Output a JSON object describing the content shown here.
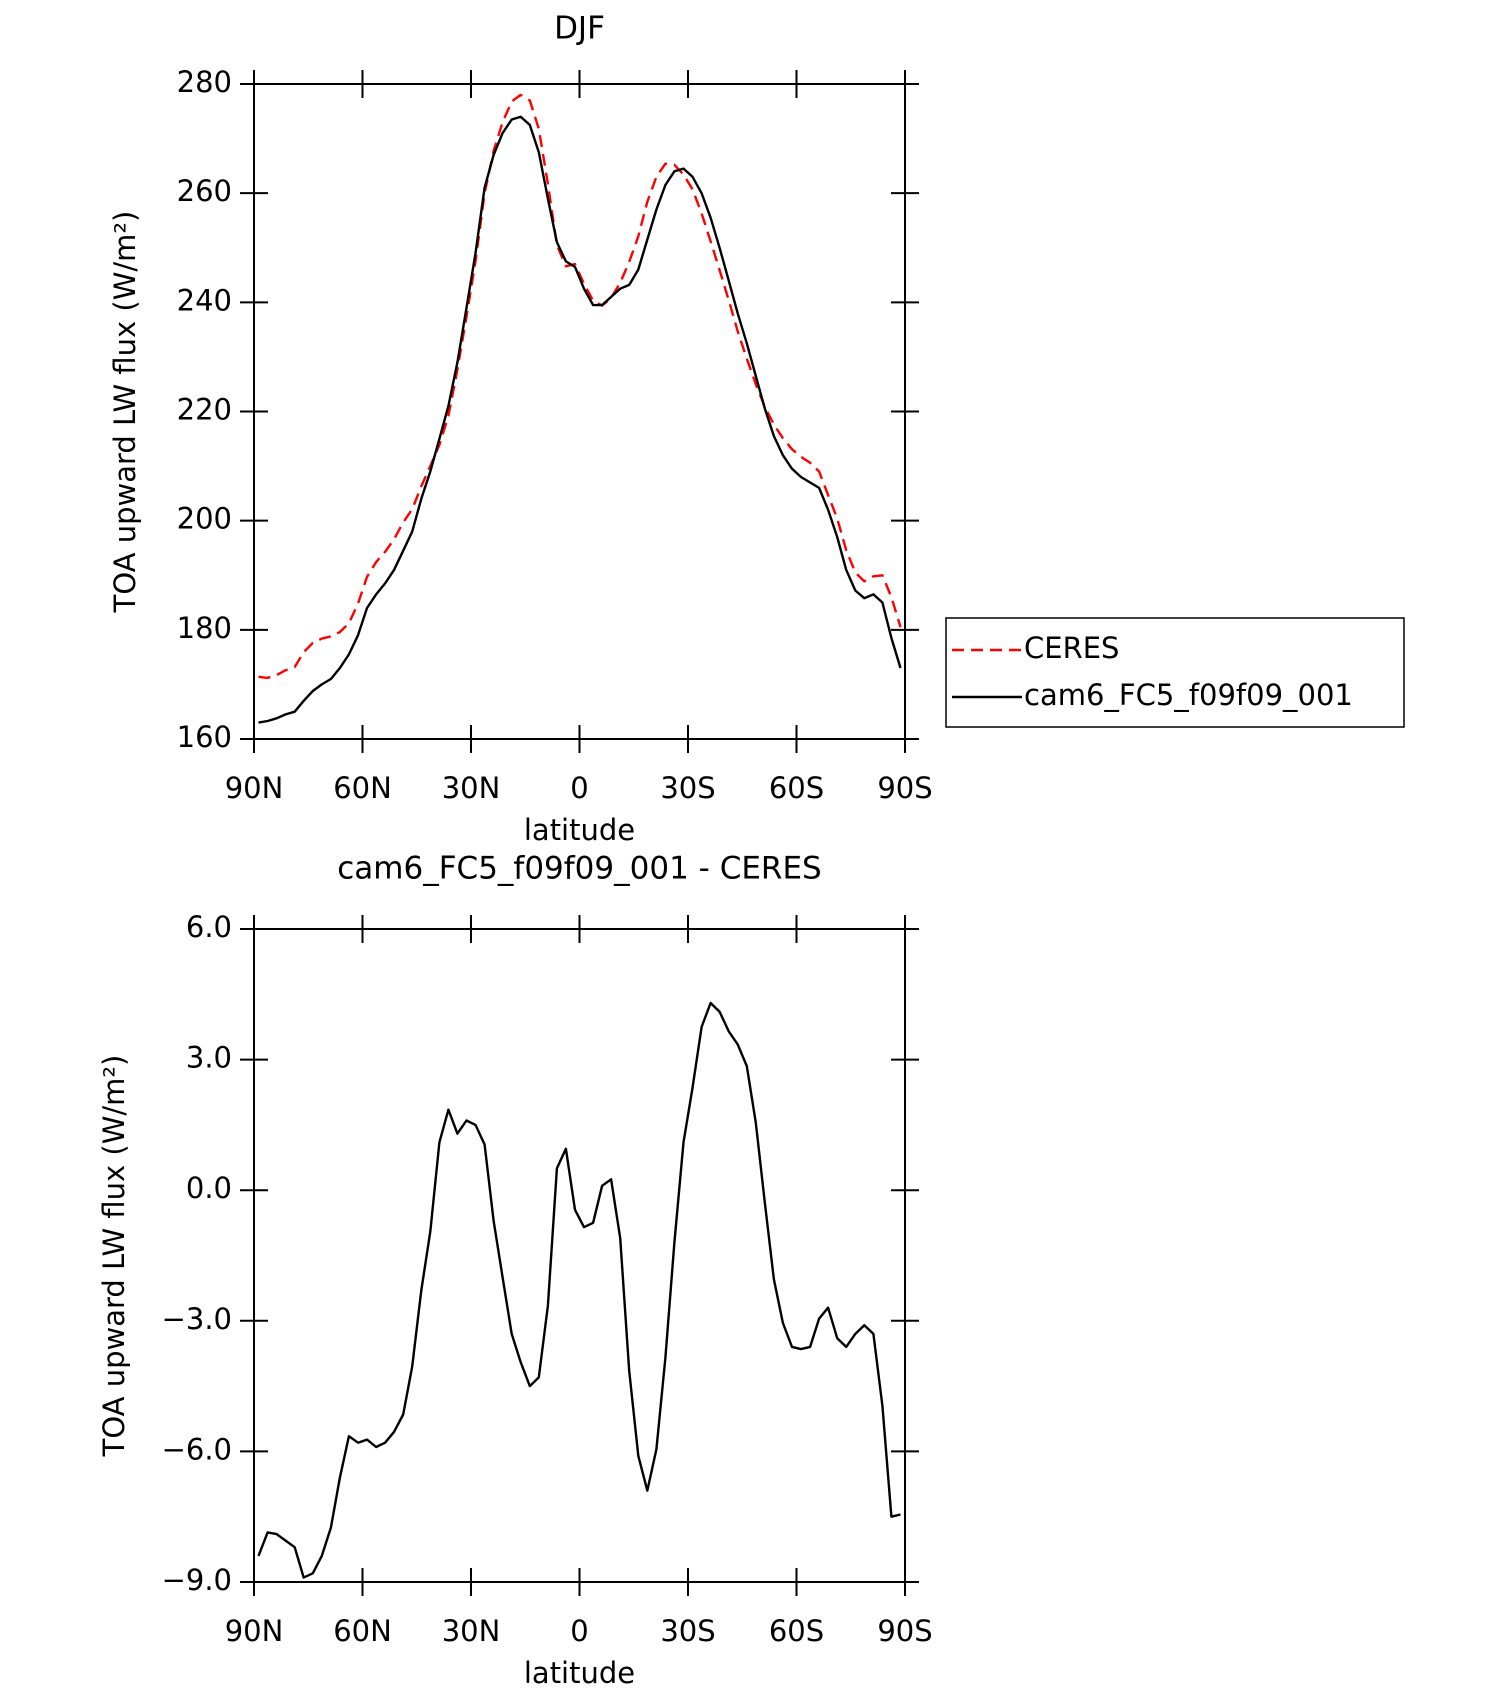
{
  "chart_data": [
    {
      "type": "line",
      "title": "DJF",
      "xlabel": "latitude",
      "ylabel": "TOA upward LW flux (W/m²)",
      "x": [
        88.75,
        86.25,
        83.75,
        81.25,
        78.75,
        76.25,
        73.75,
        71.25,
        68.75,
        66.25,
        63.75,
        61.25,
        58.75,
        56.25,
        53.75,
        51.25,
        48.75,
        46.25,
        43.75,
        41.25,
        38.75,
        36.25,
        33.75,
        31.25,
        28.75,
        26.25,
        23.75,
        21.25,
        18.75,
        16.25,
        13.75,
        11.25,
        8.75,
        6.25,
        3.75,
        1.25,
        -1.25,
        -3.75,
        -6.25,
        -8.75,
        -11.25,
        -13.75,
        -16.25,
        -18.75,
        -21.25,
        -23.75,
        -26.25,
        -28.75,
        -31.25,
        -33.75,
        -36.25,
        -38.75,
        -41.25,
        -43.75,
        -46.25,
        -48.75,
        -51.25,
        -53.75,
        -56.25,
        -58.75,
        -61.25,
        -63.75,
        -66.25,
        -68.75,
        -71.25,
        -73.75,
        -76.25,
        -78.75,
        -81.25,
        -83.75,
        -86.25,
        -88.75
      ],
      "xlim": [
        90,
        -90
      ],
      "xticks": [
        {
          "value": 90,
          "label": "90N"
        },
        {
          "value": 60,
          "label": "60N"
        },
        {
          "value": 30,
          "label": "30N"
        },
        0,
        {
          "value": -30,
          "label": "30S"
        },
        {
          "value": -60,
          "label": "60S"
        },
        {
          "value": -90,
          "label": "90S"
        }
      ],
      "ylim": [
        160,
        280
      ],
      "yticks": [
        160,
        180,
        200,
        220,
        240,
        260,
        280
      ],
      "legend": "right",
      "series": [
        {
          "name": "CERES",
          "color": "#ff0000",
          "dashed": true,
          "values": [
            171.4,
            171.2,
            171.7,
            172.6,
            173.2,
            175.9,
            177.6,
            178.4,
            178.8,
            179.6,
            181.2,
            184.8,
            189.7,
            192.4,
            194.3,
            196.6,
            199.7,
            202.1,
            206.3,
            210,
            213.9,
            219.2,
            227.7,
            237.4,
            247.5,
            260,
            267.7,
            273,
            276.8,
            278,
            277,
            271.8,
            261.7,
            250.5,
            246.6,
            247,
            243.4,
            240.3,
            239.4,
            240.8,
            243.6,
            247.4,
            252.1,
            258.4,
            263,
            265.4,
            265.2,
            263.4,
            260.7,
            256.3,
            251.2,
            245.9,
            240.4,
            234.7,
            229.7,
            225,
            220.8,
            217.6,
            215.1,
            213.1,
            211.7,
            210.6,
            209,
            204.7,
            200.4,
            194.6,
            190.5,
            188.9,
            189.8,
            190,
            186,
            180.5
          ]
        },
        {
          "name": "cam6_FC5_f09f09_001",
          "color": "#000000",
          "dashed": false,
          "values": [
            163,
            163.3,
            163.8,
            164.5,
            165,
            167,
            168.8,
            170,
            171,
            173,
            175.5,
            179,
            184,
            186.5,
            188.5,
            191,
            194.5,
            198,
            204,
            209,
            215,
            221,
            229,
            239,
            249,
            261,
            267,
            271,
            273.5,
            274,
            272.5,
            267.5,
            259,
            251,
            247.5,
            246.5,
            242.5,
            239.5,
            239.5,
            241,
            242.5,
            243.2,
            246,
            251.5,
            257,
            261.5,
            264,
            264.5,
            263,
            260,
            255.5,
            250,
            244,
            238,
            232.5,
            226.5,
            220.5,
            215.5,
            212,
            209.5,
            208,
            207,
            206,
            202,
            197,
            191,
            187.2,
            185.8,
            186.5,
            185,
            178.5,
            173
          ]
        }
      ]
    },
    {
      "type": "line",
      "title": "cam6_FC5_f09f09_001 - CERES",
      "xlabel": "latitude",
      "ylabel": "TOA upward LW flux (W/m²)",
      "x": [
        88.75,
        86.25,
        83.75,
        81.25,
        78.75,
        76.25,
        73.75,
        71.25,
        68.75,
        66.25,
        63.75,
        61.25,
        58.75,
        56.25,
        53.75,
        51.25,
        48.75,
        46.25,
        43.75,
        41.25,
        38.75,
        36.25,
        33.75,
        31.25,
        28.75,
        26.25,
        23.75,
        21.25,
        18.75,
        16.25,
        13.75,
        11.25,
        8.75,
        6.25,
        3.75,
        1.25,
        -1.25,
        -3.75,
        -6.25,
        -8.75,
        -11.25,
        -13.75,
        -16.25,
        -18.75,
        -21.25,
        -23.75,
        -26.25,
        -28.75,
        -31.25,
        -33.75,
        -36.25,
        -38.75,
        -41.25,
        -43.75,
        -46.25,
        -48.75,
        -51.25,
        -53.75,
        -56.25,
        -58.75,
        -61.25,
        -63.75,
        -66.25,
        -68.75,
        -71.25,
        -73.75,
        -76.25,
        -78.75,
        -81.25,
        -83.75,
        -86.25,
        -88.75
      ],
      "xlim": [
        90,
        -90
      ],
      "xticks": [
        {
          "value": 90,
          "label": "90N"
        },
        {
          "value": 60,
          "label": "60N"
        },
        {
          "value": 30,
          "label": "30N"
        },
        0,
        {
          "value": -30,
          "label": "30S"
        },
        {
          "value": -60,
          "label": "60S"
        },
        {
          "value": -90,
          "label": "90S"
        }
      ],
      "ylim": [
        -9,
        6
      ],
      "yticks": [
        {
          "value": -9,
          "label": "−9.0"
        },
        {
          "value": -6,
          "label": "−6.0"
        },
        {
          "value": -3,
          "label": "−3.0"
        },
        {
          "value": 0,
          "label": "0.0"
        },
        {
          "value": 3,
          "label": "3.0"
        },
        {
          "value": 6,
          "label": "6.0"
        }
      ],
      "series": [
        {
          "color": "#000000",
          "dashed": false,
          "values": [
            -8.4,
            -7.86,
            -7.9,
            -8.05,
            -8.2,
            -8.9,
            -8.8,
            -8.4,
            -7.75,
            -6.6,
            -5.65,
            -5.8,
            -5.73,
            -5.9,
            -5.8,
            -5.55,
            -5.15,
            -4.05,
            -2.3,
            -0.95,
            1.1,
            1.85,
            1.3,
            1.6,
            1.5,
            1.05,
            -0.7,
            -2,
            -3.3,
            -3.95,
            -4.5,
            -4.3,
            -2.65,
            0.5,
            0.95,
            -0.45,
            -0.85,
            -0.75,
            0.1,
            0.25,
            -1.1,
            -4.15,
            -6.1,
            -6.9,
            -5.95,
            -3.85,
            -1.2,
            1.1,
            2.35,
            3.75,
            4.3,
            4.1,
            3.65,
            3.35,
            2.85,
            1.55,
            -0.3,
            -2.05,
            -3.05,
            -3.6,
            -3.65,
            -3.6,
            -2.95,
            -2.7,
            -3.4,
            -3.6,
            -3.3,
            -3.1,
            -3.3,
            -4.95,
            -7.5,
            -7.45
          ]
        }
      ]
    }
  ]
}
